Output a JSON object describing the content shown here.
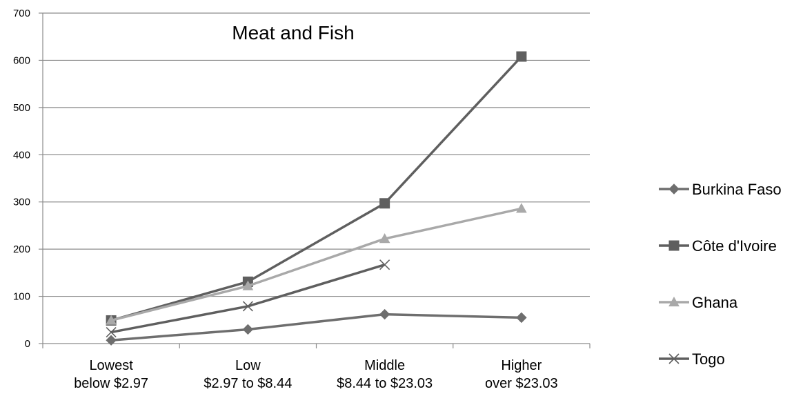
{
  "chart_data": {
    "type": "line",
    "title": "Meat and Fish",
    "xlabel": "",
    "ylabel": "",
    "categories": [
      [
        "Lowest",
        "below $2.97"
      ],
      [
        "Low",
        "$2.97 to $8.44"
      ],
      [
        "Middle",
        "$8.44 to $23.03"
      ],
      [
        "Higher",
        "over $23.03"
      ]
    ],
    "ylim": [
      0,
      700
    ],
    "yticks": [
      "0",
      "100",
      "200",
      "300",
      "400",
      "500",
      "600",
      "700"
    ],
    "grid": true,
    "legend_position": "right",
    "series": [
      {
        "name": "Burkina Faso",
        "values": [
          7,
          30,
          62,
          55
        ],
        "color": "#6e6e6e",
        "marker": "diamond"
      },
      {
        "name": "Côte d'Ivoire",
        "values": [
          49,
          131,
          297,
          608
        ],
        "color": "#5f5f5f",
        "marker": "square"
      },
      {
        "name": "Ghana",
        "values": [
          49,
          122,
          222,
          286
        ],
        "color": "#a9a9a9",
        "marker": "triangle"
      },
      {
        "name": "Togo",
        "values": [
          24,
          79,
          167,
          null
        ],
        "color": "#5f5f5f",
        "marker": "x"
      }
    ]
  }
}
